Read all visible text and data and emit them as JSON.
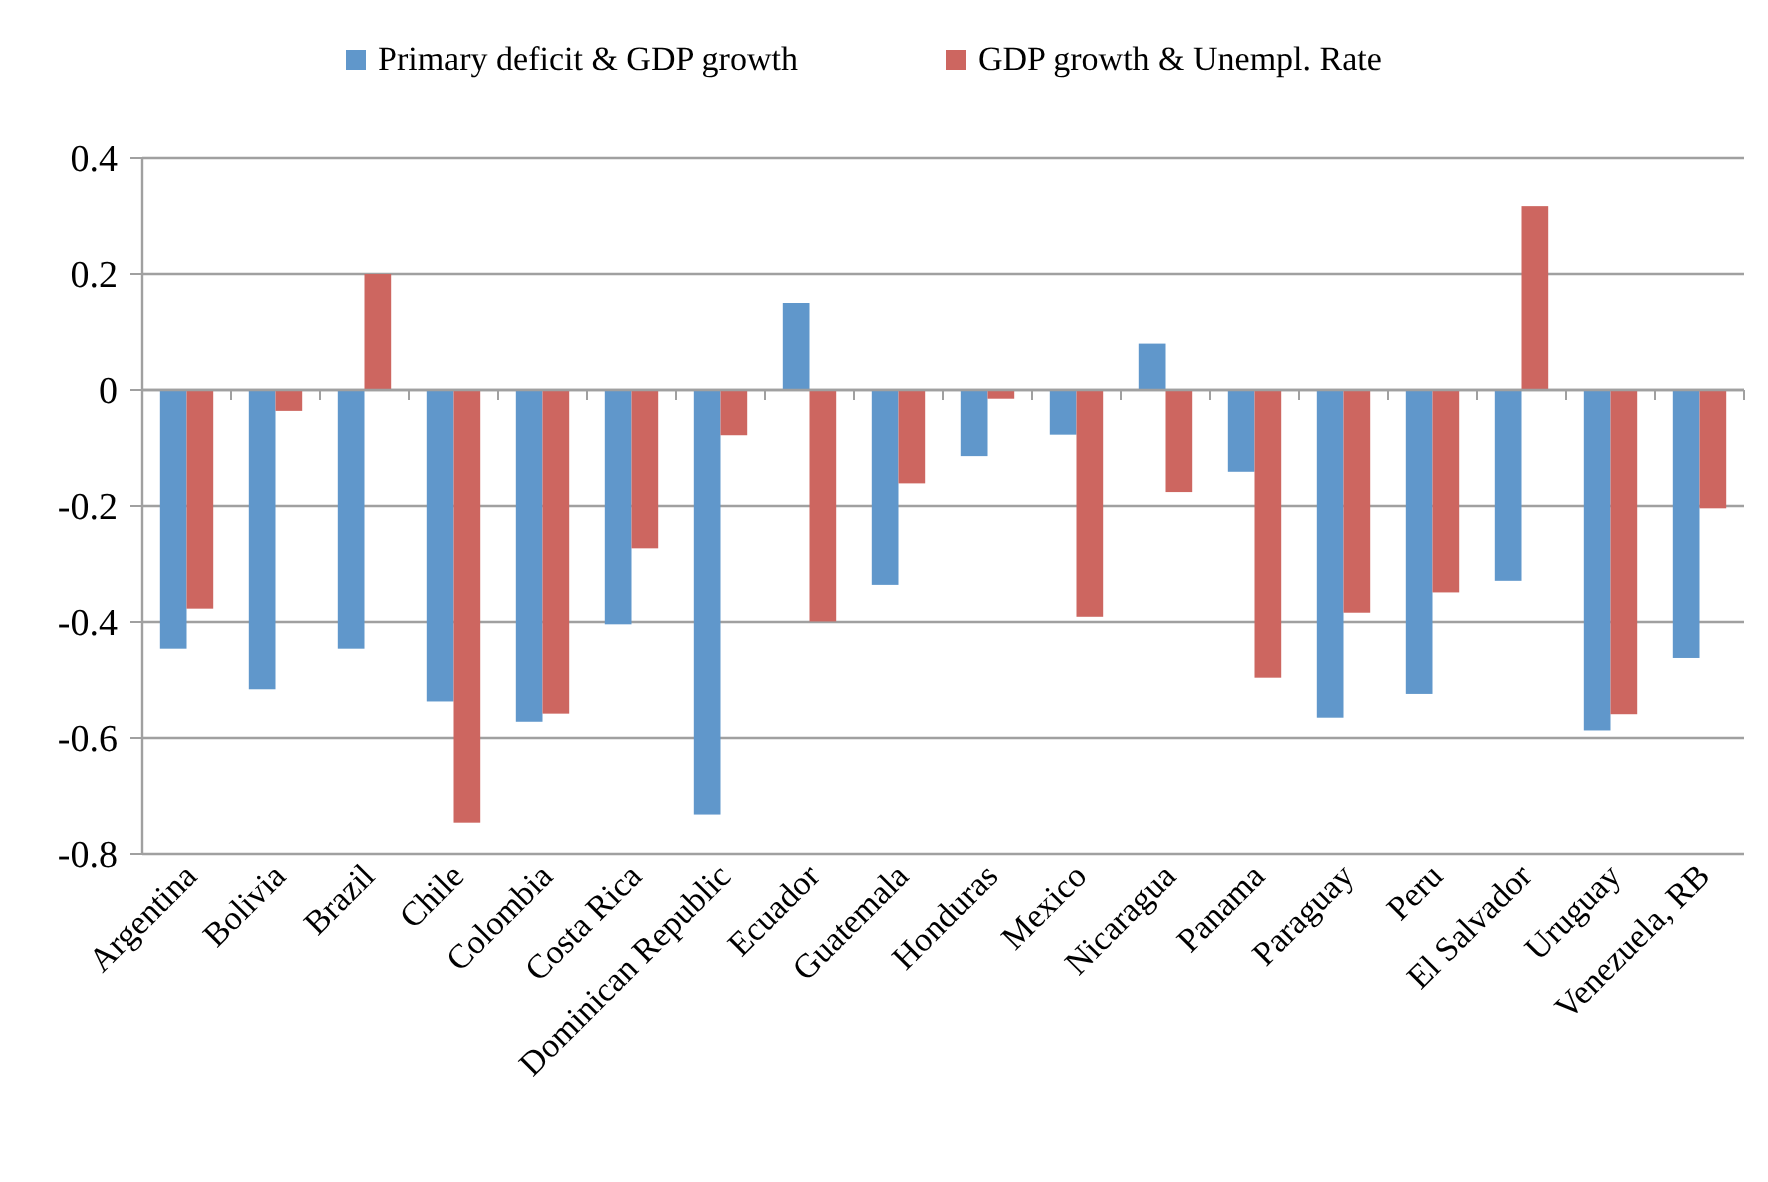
{
  "chart_data": {
    "type": "bar",
    "categories": [
      "Argentina",
      "Bolivia",
      "Brazil",
      "Chile",
      "Colombia",
      "Costa Rica",
      "Dominican Republic",
      "Ecuador",
      "Guatemala",
      "Honduras",
      "Mexico",
      "Nicaragua",
      "Panama",
      "Paraguay",
      "Peru",
      "El Salvador",
      "Uruguay",
      "Venezuela, RB"
    ],
    "series": [
      {
        "name": "Primary deficit & GDP growth",
        "color": "#6097cb",
        "values": [
          -0.446,
          -0.516,
          -0.446,
          -0.537,
          -0.572,
          -0.404,
          -0.732,
          0.15,
          -0.336,
          -0.114,
          -0.077,
          0.08,
          -0.141,
          -0.565,
          -0.524,
          -0.329,
          -0.587,
          -0.462
        ]
      },
      {
        "name": "GDP growth & Unempl. Rate",
        "color": "#cd6660",
        "values": [
          -0.377,
          -0.036,
          0.2,
          -0.746,
          -0.558,
          -0.273,
          -0.078,
          -0.399,
          -0.161,
          -0.015,
          -0.391,
          -0.176,
          -0.496,
          -0.384,
          -0.349,
          0.317,
          -0.559,
          -0.204
        ]
      }
    ],
    "ylim": [
      -0.8,
      0.4
    ],
    "yticks": [
      -0.8,
      -0.6,
      -0.4,
      -0.2,
      0,
      0.2,
      0.4
    ],
    "grid": "y",
    "legend": "top"
  }
}
